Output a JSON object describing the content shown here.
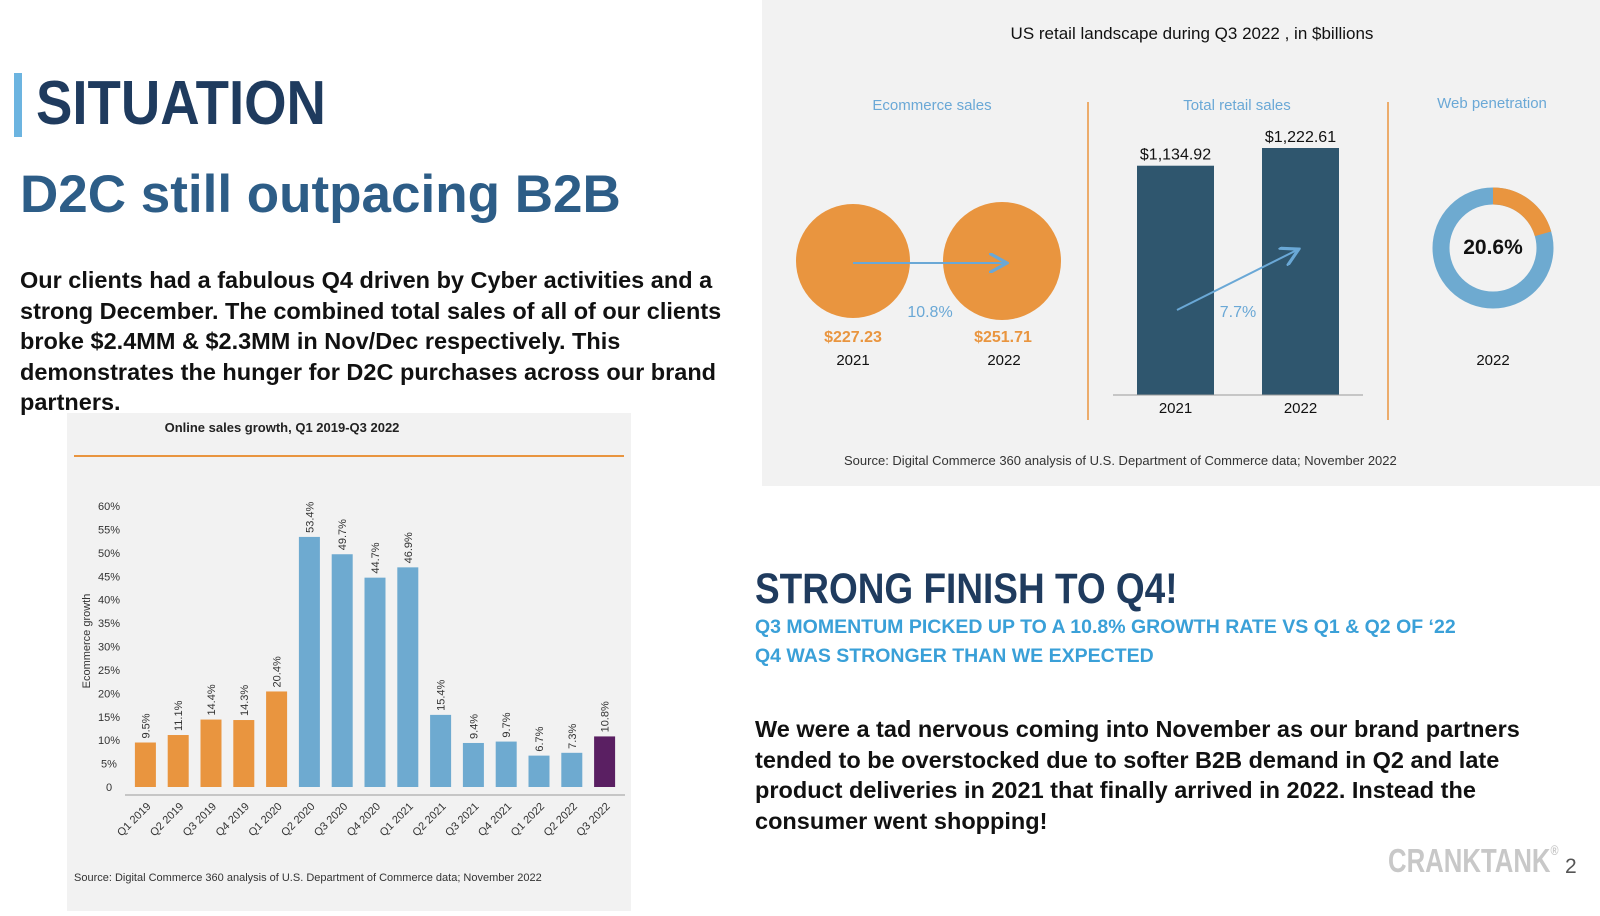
{
  "slide": {
    "section": "SITUATION",
    "headline": "D2C still outpacing B2B",
    "body": "Our clients had a fabulous Q4 driven by Cyber activities and a strong December. The combined total sales of all of our clients broke $2.4MM & $2.3MM in Nov/Dec respectively.  This demonstrates the hunger for D2C purchases across our brand partners.",
    "finish_title": "STRONG FINISH TO Q4!",
    "sub1": "Q3 MOMENTUM PICKED UP TO A 10.8% GROWTH RATE VS Q1 & Q2 OF ‘22",
    "sub2": "Q4 WAS STRONGER THAN WE EXPECTED",
    "paragraph": "We were a tad nervous coming into November as our brand partners tended to be overstocked due to softer B2B demand in Q2 and late product deliveries in 2021 that finally arrived in 2022. Instead the consumer went shopping!",
    "logo": "CRANKTANK",
    "logo_mark": "®",
    "page_number": "2"
  },
  "colors": {
    "orange": "#e9953f",
    "blue": "#6eaad0",
    "purple": "#5a1f62",
    "navy": "#2f566e",
    "accent_blue": "#6cb4e0",
    "label_blue": "#6aa8d6"
  },
  "chart_data": [
    {
      "type": "bar",
      "title": "Online sales growth, Q1 2019-Q3 2022",
      "ylabel": "Ecommerce growth",
      "xlabel": "",
      "ylim": [
        0,
        60
      ],
      "yticks": [
        "0",
        "5%",
        "10%",
        "15%",
        "20%",
        "25%",
        "30%",
        "35%",
        "40%",
        "45%",
        "50%",
        "55%",
        "60%"
      ],
      "categories": [
        "Q1 2019",
        "Q2 2019",
        "Q3 2019",
        "Q4 2019",
        "Q1 2020",
        "Q2 2020",
        "Q3 2020",
        "Q4 2020",
        "Q1 2021",
        "Q2 2021",
        "Q3 2021",
        "Q4 2021",
        "Q1 2022",
        "Q2 2022",
        "Q3 2022"
      ],
      "values": [
        9.5,
        11.1,
        14.4,
        14.3,
        20.4,
        53.4,
        49.7,
        44.7,
        46.9,
        15.4,
        9.4,
        9.7,
        6.7,
        7.3,
        10.8
      ],
      "value_labels": [
        "9.5%",
        "11.1%",
        "14.4%",
        "14.3%",
        "20.4%",
        "53.4%",
        "49.7%",
        "44.7%",
        "46.9%",
        "15.4%",
        "9.4%",
        "9.7%",
        "6.7%",
        "7.3%",
        "10.8%"
      ],
      "bar_colors": [
        "orange",
        "orange",
        "orange",
        "orange",
        "orange",
        "blue",
        "blue",
        "blue",
        "blue",
        "blue",
        "blue",
        "blue",
        "blue",
        "blue",
        "purple"
      ],
      "grid": false,
      "source": "Source: Digital Commerce 360 analysis of U.S. Department of Commerce data; November 2022"
    },
    {
      "type": "infographic",
      "title": "US retail landscape during Q3 2022 , in $billions",
      "ecommerce": {
        "label": "Ecommerce sales",
        "values": [
          {
            "year": "2021",
            "label": "$227.23"
          },
          {
            "year": "2022",
            "label": "$251.71"
          }
        ],
        "growth": "10.8%"
      },
      "total_retail": {
        "type": "bar",
        "label": "Total retail sales",
        "categories": [
          "2021",
          "2022"
        ],
        "values": [
          1134.92,
          1222.61
        ],
        "value_labels": [
          "$1,134.92",
          "$1,222.61"
        ],
        "growth": "7.7%"
      },
      "web_penetration": {
        "type": "pie",
        "label": "Web penetration",
        "value": 20.6,
        "value_label": "20.6%",
        "year": "2022"
      },
      "source": "Source: Digital Commerce 360 analysis of U.S. Department of Commerce data; November 2022"
    }
  ]
}
